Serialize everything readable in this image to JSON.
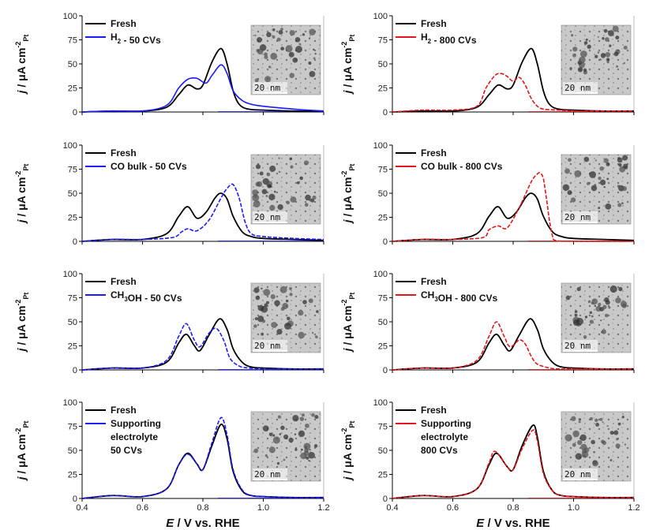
{
  "figure": {
    "x_axis_label": "E / V vs. RHE",
    "y_axis_label": "j / μA cm⁻²Pt",
    "x_ticks": [
      "0.4",
      "0.6",
      "0.8",
      "1.0",
      "1.2"
    ],
    "y_ticks": [
      "0",
      "25",
      "50",
      "75",
      "100"
    ],
    "inset_scale_label": "20 nm",
    "colors": {
      "fresh": "#000000",
      "left_treated": "#1a1aff",
      "right_treated": "#e8141a"
    }
  },
  "chart_data": [
    {
      "type": "line",
      "panel": "row1-left",
      "xlim": [
        0.4,
        1.2
      ],
      "ylim": [
        0,
        100
      ],
      "series": [
        {
          "name": "Fresh",
          "style": "solid",
          "color": "#000000",
          "x": [
            0.4,
            0.5,
            0.6,
            0.68,
            0.72,
            0.75,
            0.78,
            0.8,
            0.83,
            0.86,
            0.88,
            0.9,
            0.92,
            0.95,
            1.0,
            1.1,
            1.2
          ],
          "y": [
            0,
            1,
            1,
            5,
            18,
            28,
            24,
            28,
            52,
            66,
            50,
            22,
            8,
            3,
            2,
            1,
            1
          ]
        },
        {
          "name": "H2 - 50 CVs",
          "style": "solid",
          "color": "#1a1aff",
          "x": [
            0.4,
            0.5,
            0.6,
            0.68,
            0.72,
            0.75,
            0.78,
            0.81,
            0.83,
            0.86,
            0.88,
            0.9,
            0.93,
            0.96,
            1.0,
            1.1,
            1.2
          ],
          "y": [
            0,
            1,
            1,
            7,
            25,
            34,
            35,
            30,
            38,
            49,
            40,
            22,
            12,
            8,
            6,
            3,
            1
          ]
        }
      ],
      "legend": [
        "Fresh",
        "H2 - 50 CVs"
      ]
    },
    {
      "type": "line",
      "panel": "row1-right",
      "xlim": [
        0.4,
        1.2
      ],
      "ylim": [
        0,
        100
      ],
      "series": [
        {
          "name": "Fresh",
          "style": "solid",
          "color": "#000000",
          "x": [
            0.4,
            0.5,
            0.6,
            0.68,
            0.72,
            0.75,
            0.78,
            0.8,
            0.83,
            0.86,
            0.88,
            0.9,
            0.92,
            0.95,
            1.0,
            1.1,
            1.2
          ],
          "y": [
            0,
            1,
            1,
            5,
            18,
            28,
            24,
            28,
            52,
            66,
            50,
            22,
            8,
            3,
            2,
            1,
            1
          ]
        },
        {
          "name": "H2 - 800 CVs",
          "style": "dashed",
          "color": "#e8141a",
          "x": [
            0.4,
            0.5,
            0.6,
            0.68,
            0.71,
            0.74,
            0.76,
            0.78,
            0.8,
            0.82,
            0.84,
            0.86,
            0.88,
            0.9,
            0.95,
            1.0,
            1.1,
            1.2
          ],
          "y": [
            0,
            2,
            2,
            6,
            25,
            38,
            40,
            37,
            32,
            36,
            28,
            14,
            6,
            3,
            2,
            1,
            1,
            1
          ]
        }
      ],
      "legend": [
        "Fresh",
        "H2 - 800 CVs"
      ]
    },
    {
      "type": "line",
      "panel": "row2-left",
      "xlim": [
        0.4,
        1.2
      ],
      "ylim": [
        0,
        100
      ],
      "series": [
        {
          "name": "Fresh",
          "style": "solid",
          "color": "#000000",
          "x": [
            0.4,
            0.5,
            0.6,
            0.68,
            0.72,
            0.75,
            0.78,
            0.81,
            0.84,
            0.86,
            0.88,
            0.9,
            0.93,
            0.96,
            1.0,
            1.1,
            1.2
          ],
          "y": [
            0,
            2,
            2,
            8,
            26,
            36,
            24,
            30,
            45,
            50,
            44,
            26,
            10,
            5,
            3,
            2,
            1
          ]
        },
        {
          "name": "CO bulk - 50 CVs",
          "style": "dashed",
          "color": "#1a1aff",
          "x": [
            0.4,
            0.5,
            0.6,
            0.7,
            0.73,
            0.75,
            0.78,
            0.82,
            0.86,
            0.88,
            0.9,
            0.92,
            0.94,
            0.96,
            1.0,
            1.1,
            1.2
          ],
          "y": [
            0,
            2,
            2,
            4,
            10,
            13,
            11,
            22,
            45,
            55,
            59,
            45,
            20,
            8,
            5,
            3,
            2
          ]
        }
      ],
      "legend": [
        "Fresh",
        "CO bulk - 50 CVs"
      ]
    },
    {
      "type": "line",
      "panel": "row2-right",
      "xlim": [
        0.4,
        1.2
      ],
      "ylim": [
        0,
        100
      ],
      "series": [
        {
          "name": "Fresh",
          "style": "solid",
          "color": "#000000",
          "x": [
            0.4,
            0.5,
            0.6,
            0.68,
            0.72,
            0.75,
            0.78,
            0.81,
            0.84,
            0.86,
            0.88,
            0.9,
            0.93,
            0.96,
            1.0,
            1.1,
            1.2
          ],
          "y": [
            0,
            2,
            2,
            8,
            26,
            36,
            24,
            30,
            45,
            50,
            44,
            26,
            10,
            5,
            3,
            2,
            1
          ]
        },
        {
          "name": "CO bulk - 800 CVs",
          "style": "dashed",
          "color": "#e8141a",
          "x": [
            0.4,
            0.5,
            0.6,
            0.7,
            0.72,
            0.75,
            0.78,
            0.82,
            0.86,
            0.88,
            0.89,
            0.9,
            0.91,
            0.92,
            0.93,
            0.94,
            1.0,
            1.2
          ],
          "y": [
            0,
            2,
            2,
            4,
            12,
            16,
            14,
            35,
            62,
            70,
            71,
            65,
            45,
            22,
            6,
            1,
            0,
            0
          ]
        }
      ],
      "legend": [
        "Fresh",
        "CO bulk - 800 CVs"
      ]
    },
    {
      "type": "line",
      "panel": "row3-left",
      "xlim": [
        0.4,
        1.2
      ],
      "ylim": [
        0,
        100
      ],
      "series": [
        {
          "name": "Fresh",
          "style": "solid",
          "color": "#000000",
          "x": [
            0.4,
            0.5,
            0.6,
            0.68,
            0.72,
            0.745,
            0.77,
            0.79,
            0.82,
            0.855,
            0.88,
            0.9,
            0.93,
            0.96,
            1.0,
            1.1,
            1.2
          ],
          "y": [
            0,
            2,
            2,
            8,
            28,
            37,
            26,
            20,
            36,
            53,
            42,
            22,
            8,
            3,
            2,
            1,
            1
          ]
        },
        {
          "name": "CH3OH - 50 CVs",
          "style": "dashed",
          "color": "#1a1aff",
          "x": [
            0.4,
            0.5,
            0.6,
            0.68,
            0.72,
            0.745,
            0.77,
            0.79,
            0.82,
            0.845,
            0.87,
            0.89,
            0.92,
            0.95,
            1.0,
            1.1,
            1.2
          ],
          "y": [
            0,
            2,
            2,
            10,
            35,
            48,
            32,
            24,
            38,
            43,
            30,
            12,
            4,
            2,
            1,
            1,
            1
          ]
        }
      ],
      "legend": [
        "Fresh",
        "CH3OH - 50 CVs"
      ]
    },
    {
      "type": "line",
      "panel": "row3-right",
      "xlim": [
        0.4,
        1.2
      ],
      "ylim": [
        0,
        100
      ],
      "series": [
        {
          "name": "Fresh",
          "style": "solid",
          "color": "#000000",
          "x": [
            0.4,
            0.5,
            0.6,
            0.68,
            0.72,
            0.745,
            0.77,
            0.79,
            0.82,
            0.855,
            0.88,
            0.9,
            0.93,
            0.96,
            1.0,
            1.1,
            1.2
          ],
          "y": [
            0,
            2,
            2,
            8,
            28,
            37,
            26,
            20,
            36,
            53,
            42,
            22,
            8,
            3,
            2,
            1,
            1
          ]
        },
        {
          "name": "CH3OH - 800 CVs",
          "style": "dashed",
          "color": "#e8141a",
          "x": [
            0.4,
            0.5,
            0.6,
            0.68,
            0.72,
            0.745,
            0.77,
            0.79,
            0.82,
            0.84,
            0.86,
            0.88,
            0.92,
            0.95,
            1.0,
            1.1,
            1.2
          ],
          "y": [
            0,
            2,
            2,
            10,
            35,
            50,
            35,
            24,
            31,
            27,
            14,
            6,
            2,
            1,
            1,
            1,
            1
          ]
        }
      ],
      "legend": [
        "Fresh",
        "CH3OH - 800 CVs"
      ]
    },
    {
      "type": "line",
      "panel": "row4-left",
      "xlim": [
        0.4,
        1.2
      ],
      "ylim": [
        0,
        100
      ],
      "series": [
        {
          "name": "Fresh",
          "style": "solid",
          "color": "#000000",
          "x": [
            0.4,
            0.5,
            0.6,
            0.68,
            0.72,
            0.75,
            0.78,
            0.8,
            0.83,
            0.86,
            0.88,
            0.9,
            0.93,
            0.96,
            1.0,
            1.1,
            1.2
          ],
          "y": [
            0,
            3,
            2,
            10,
            35,
            47,
            36,
            30,
            55,
            77,
            62,
            28,
            8,
            3,
            2,
            1,
            1
          ]
        },
        {
          "name": "Supporting electrolyte 50 CVs",
          "style": "dashed",
          "color": "#1a1aff",
          "x": [
            0.4,
            0.5,
            0.6,
            0.68,
            0.72,
            0.75,
            0.78,
            0.8,
            0.83,
            0.86,
            0.88,
            0.9,
            0.93,
            0.96,
            1.0,
            1.1,
            1.2
          ],
          "y": [
            0,
            3,
            2,
            10,
            35,
            46,
            36,
            30,
            58,
            84,
            66,
            30,
            9,
            3,
            2,
            1,
            1
          ]
        }
      ],
      "legend": [
        "Fresh",
        "Supporting electrolyte 50 CVs"
      ]
    },
    {
      "type": "line",
      "panel": "row4-right",
      "xlim": [
        0.4,
        1.2
      ],
      "ylim": [
        0,
        100
      ],
      "series": [
        {
          "name": "Fresh",
          "style": "solid",
          "color": "#000000",
          "x": [
            0.4,
            0.5,
            0.6,
            0.68,
            0.72,
            0.745,
            0.78,
            0.8,
            0.83,
            0.865,
            0.88,
            0.9,
            0.93,
            0.96,
            1.0,
            1.1,
            1.2
          ],
          "y": [
            0,
            3,
            2,
            10,
            35,
            47,
            33,
            30,
            55,
            76,
            64,
            28,
            8,
            3,
            2,
            1,
            1
          ]
        },
        {
          "name": "Supporting electrolyte 800 CVs",
          "style": "dashed",
          "color": "#e8141a",
          "x": [
            0.4,
            0.5,
            0.6,
            0.68,
            0.72,
            0.74,
            0.78,
            0.8,
            0.83,
            0.865,
            0.88,
            0.9,
            0.93,
            0.96,
            1.0,
            1.1,
            1.2
          ],
          "y": [
            0,
            3,
            2,
            10,
            37,
            49,
            33,
            30,
            52,
            71,
            60,
            26,
            8,
            3,
            2,
            1,
            1
          ]
        }
      ],
      "legend": [
        "Fresh",
        "Supporting electrolyte 800 CVs"
      ]
    }
  ]
}
